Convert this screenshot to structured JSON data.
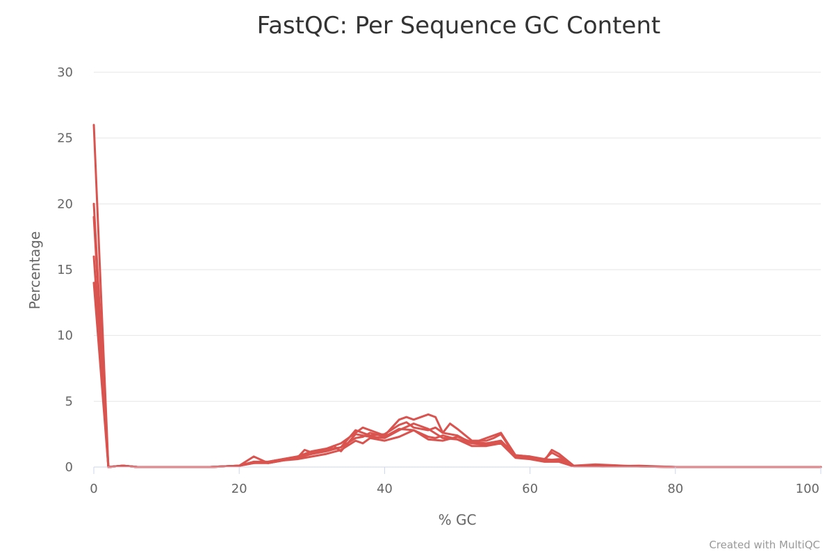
{
  "credits": "Created with MultiQC",
  "colors": {
    "series": "#d9534f",
    "grid": "#e6e6e6",
    "axis": "#ccd6eb",
    "text": "#666666",
    "title": "#333333"
  },
  "chart_data": {
    "type": "line",
    "title": "FastQC: Per Sequence GC Content",
    "xlabel": "% GC",
    "ylabel": "Percentage",
    "xlim": [
      0,
      100
    ],
    "ylim": [
      0,
      30
    ],
    "x_ticks": [
      0,
      20,
      40,
      60,
      80,
      100
    ],
    "y_ticks": [
      0,
      5,
      10,
      15,
      20,
      25,
      30
    ],
    "grid": true,
    "legend": "none",
    "series": [
      {
        "x": [
          0,
          2,
          4,
          6,
          10,
          16,
          20,
          22,
          24,
          26,
          28,
          30,
          32,
          34,
          36,
          37,
          38,
          40,
          42,
          43,
          44,
          46,
          47,
          48,
          50,
          52,
          54,
          55,
          56,
          58,
          60,
          62,
          63,
          64,
          66,
          70,
          75,
          80,
          100
        ],
        "y": [
          26,
          0,
          0.1,
          0,
          0,
          0,
          0.1,
          0.3,
          0.4,
          0.6,
          0.8,
          1.2,
          1.4,
          1.8,
          2.6,
          3.0,
          2.8,
          2.4,
          3.6,
          3.8,
          3.6,
          4.0,
          3.8,
          2.6,
          2.4,
          1.8,
          2.2,
          2.4,
          2.6,
          0.9,
          0.8,
          0.5,
          1.3,
          1.0,
          0.1,
          0.05,
          0.1,
          0,
          0
        ]
      },
      {
        "x": [
          0,
          2,
          4,
          6,
          10,
          16,
          20,
          22,
          24,
          26,
          28,
          30,
          32,
          34,
          36,
          37,
          38,
          40,
          42,
          43,
          44,
          46,
          47,
          48,
          49,
          50,
          52,
          54,
          55,
          56,
          58,
          60,
          62,
          63,
          64,
          66,
          69,
          75,
          80,
          100
        ],
        "y": [
          19,
          0,
          0.1,
          0,
          0,
          0,
          0.1,
          0.8,
          0.3,
          0.5,
          0.7,
          1.0,
          1.2,
          1.5,
          2.8,
          2.6,
          2.4,
          2.5,
          3.2,
          3.4,
          3.0,
          2.8,
          3.0,
          2.6,
          3.3,
          2.9,
          2.0,
          2.0,
          2.2,
          2.5,
          0.8,
          0.8,
          0.6,
          1.1,
          0.8,
          0.1,
          0.2,
          0.05,
          0,
          0
        ]
      },
      {
        "x": [
          0,
          2,
          4,
          6,
          10,
          16,
          20,
          22,
          24,
          26,
          28,
          29,
          30,
          32,
          33,
          34,
          36,
          37,
          38,
          40,
          42,
          44,
          46,
          48,
          50,
          52,
          54,
          56,
          58,
          60,
          62,
          64,
          66,
          70,
          75,
          80,
          100
        ],
        "y": [
          16,
          0,
          0.1,
          0,
          0,
          0,
          0.1,
          0.4,
          0.3,
          0.5,
          0.7,
          1.3,
          1.1,
          1.3,
          1.6,
          1.2,
          2.5,
          2.4,
          2.3,
          2.2,
          2.8,
          3.3,
          2.9,
          2.2,
          2.1,
          1.8,
          1.7,
          1.9,
          0.8,
          0.7,
          0.6,
          0.5,
          0.05,
          0.05,
          0.05,
          0,
          0
        ]
      },
      {
        "x": [
          0,
          2,
          4,
          6,
          10,
          16,
          20,
          22,
          24,
          26,
          28,
          30,
          32,
          34,
          36,
          37,
          38,
          40,
          42,
          44,
          46,
          47,
          48,
          50,
          52,
          54,
          56,
          58,
          60,
          62,
          64,
          66,
          70,
          75,
          80,
          100
        ],
        "y": [
          14,
          0,
          0.1,
          0,
          0,
          0,
          0.1,
          0.3,
          0.3,
          0.5,
          0.6,
          0.8,
          1.0,
          1.3,
          2.0,
          1.8,
          2.2,
          2.0,
          2.3,
          2.8,
          2.3,
          2.2,
          2.4,
          2.1,
          1.6,
          1.6,
          1.8,
          0.7,
          0.6,
          0.4,
          0.4,
          0.05,
          0.05,
          0.05,
          0,
          0
        ]
      },
      {
        "x": [
          0,
          2,
          4,
          6,
          10,
          16,
          20,
          22,
          24,
          26,
          28,
          30,
          32,
          34,
          36,
          37,
          38,
          40,
          42,
          44,
          46,
          48,
          50,
          52,
          54,
          56,
          58,
          60,
          62,
          64,
          66,
          70,
          75,
          80,
          100
        ],
        "y": [
          20,
          0,
          0.1,
          0,
          0,
          0,
          0.1,
          0.4,
          0.4,
          0.6,
          0.8,
          1.0,
          1.3,
          1.5,
          2.2,
          2.3,
          2.6,
          2.3,
          2.9,
          2.8,
          2.1,
          2.0,
          2.3,
          1.9,
          1.8,
          2.0,
          0.9,
          0.8,
          0.5,
          0.6,
          0.1,
          0.05,
          0.05,
          0,
          0
        ]
      }
    ]
  }
}
